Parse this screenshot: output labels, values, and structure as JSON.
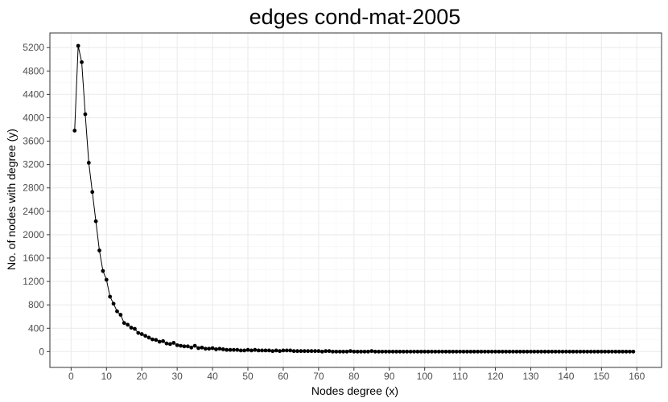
{
  "chart_data": {
    "type": "line",
    "title": "edges cond-mat-2005",
    "xlabel": "Nodes degree (x)",
    "ylabel": "No. of nodes with degree (y)",
    "xlim": [
      -6,
      167
    ],
    "ylim": [
      -270,
      5450
    ],
    "xticks": [
      0,
      10,
      20,
      30,
      40,
      50,
      60,
      70,
      80,
      90,
      100,
      110,
      120,
      130,
      140,
      150,
      160
    ],
    "yticks": [
      0,
      400,
      800,
      1200,
      1600,
      2000,
      2400,
      2800,
      3200,
      3600,
      4000,
      4400,
      4800,
      5200
    ],
    "grid": true,
    "legend": "none",
    "colors": {
      "line": "#000000",
      "grid_major": "#ebebeb",
      "grid_minor": "#f5f5f5",
      "frame": "#333333"
    },
    "series": [
      {
        "x": [
          1,
          2,
          3,
          4,
          5,
          6,
          7,
          8,
          9,
          10,
          11,
          12,
          13,
          14,
          15,
          16,
          17,
          18,
          19,
          20,
          21,
          22,
          23,
          24,
          25,
          26,
          27,
          28,
          29,
          30,
          31,
          32,
          33,
          34,
          35,
          36,
          37,
          38,
          39,
          40,
          41,
          42,
          43,
          44,
          45,
          46,
          47,
          48,
          49,
          50,
          51,
          52,
          53,
          54,
          55,
          56,
          57,
          58,
          59,
          60,
          61,
          62,
          63,
          64,
          65,
          66,
          67,
          68,
          69,
          70,
          71,
          72,
          73,
          74,
          75,
          76,
          77,
          78,
          79,
          80,
          81,
          82,
          83,
          84,
          85,
          86,
          87,
          88,
          89,
          90,
          91,
          92,
          93,
          94,
          95,
          96,
          97,
          98,
          99,
          100,
          101,
          102,
          103,
          104,
          105,
          106,
          107,
          108,
          109,
          110,
          111,
          112,
          113,
          114,
          115,
          116,
          117,
          118,
          119,
          120,
          121,
          122,
          123,
          124,
          125,
          126,
          127,
          128,
          129,
          130,
          131,
          132,
          133,
          134,
          135,
          136,
          137,
          138,
          139,
          140,
          141,
          142,
          143,
          144,
          145,
          146,
          147,
          148,
          149,
          150,
          151,
          152,
          153,
          154,
          155,
          156,
          157,
          158,
          159
        ],
        "values": [
          3780,
          5230,
          4950,
          4060,
          3230,
          2730,
          2230,
          1730,
          1380,
          1230,
          940,
          820,
          690,
          630,
          490,
          460,
          410,
          390,
          320,
          300,
          270,
          240,
          210,
          200,
          170,
          180,
          140,
          130,
          150,
          110,
          100,
          90,
          90,
          70,
          100,
          60,
          70,
          50,
          50,
          60,
          40,
          50,
          40,
          30,
          30,
          30,
          30,
          20,
          20,
          30,
          20,
          30,
          20,
          20,
          20,
          20,
          10,
          20,
          10,
          20,
          20,
          20,
          10,
          10,
          10,
          10,
          10,
          10,
          10,
          10,
          0,
          10,
          10,
          0,
          0,
          0,
          0,
          0,
          10,
          0,
          0,
          0,
          0,
          0,
          10,
          0,
          0,
          0,
          0,
          0,
          0,
          0,
          0,
          0,
          0,
          0,
          0,
          0,
          0,
          0,
          0,
          0,
          0,
          0,
          0,
          0,
          0,
          0,
          0,
          0,
          0,
          0,
          0,
          0,
          0,
          0,
          0,
          0,
          0,
          0,
          0,
          0,
          0,
          0,
          0,
          0,
          0,
          0,
          0,
          0,
          0,
          0,
          0,
          0,
          0,
          0,
          0,
          0,
          0,
          0,
          0,
          0,
          0,
          0,
          0,
          0,
          0,
          0,
          0,
          0,
          0,
          0,
          0,
          0,
          0,
          0,
          0,
          0,
          0
        ]
      }
    ]
  }
}
